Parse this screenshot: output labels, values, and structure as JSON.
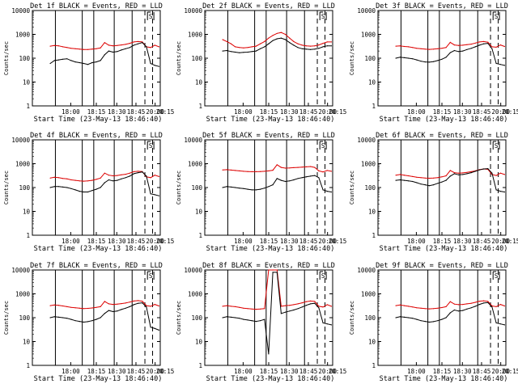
{
  "figure": {
    "xlabel": "Start Time (23-May-13 18:46:40)",
    "ylabel": "Counts/sec",
    "y_ticks": [
      "1",
      "10",
      "100",
      "1000",
      "10000"
    ],
    "x_ticks": [
      "18:00",
      "18:15",
      "18:30",
      "18:45",
      "20:00",
      "20:15"
    ],
    "marker_text": "S",
    "series_names": [
      "Events",
      "LLD"
    ],
    "colors": {
      "events": "#000000",
      "lld": "#dd0000",
      "axes": "#000000"
    }
  },
  "chart_data": [
    {
      "type": "line",
      "title": "Det 1f BLACK = Events, RED = LLD",
      "ylim": [
        1,
        10000
      ],
      "scale": "log",
      "series": [
        {
          "name": "Events",
          "color": "#000000",
          "values": [
            60,
            80,
            85,
            90,
            95,
            80,
            70,
            65,
            60,
            55,
            65,
            70,
            80,
            140,
            200,
            180,
            190,
            220,
            250,
            280,
            350,
            400,
            450,
            300,
            60,
            50,
            45
          ]
        },
        {
          "name": "LLD",
          "color": "#dd0000",
          "values": [
            320,
            340,
            330,
            300,
            280,
            260,
            250,
            240,
            230,
            230,
            240,
            250,
            270,
            450,
            350,
            330,
            340,
            360,
            380,
            420,
            480,
            500,
            480,
            300,
            280,
            350,
            300
          ]
        }
      ]
    },
    {
      "type": "line",
      "title": "Det 2f BLACK = Events, RED = LLD",
      "ylim": [
        1,
        10000
      ],
      "scale": "log",
      "series": [
        {
          "name": "Events",
          "color": "#000000",
          "values": [
            200,
            210,
            190,
            180,
            170,
            175,
            180,
            190,
            200,
            250,
            300,
            400,
            550,
            650,
            700,
            600,
            450,
            350,
            280,
            250,
            240,
            230,
            240,
            260,
            300,
            330,
            330
          ]
        },
        {
          "name": "LLD",
          "color": "#dd0000",
          "values": [
            600,
            500,
            400,
            300,
            280,
            270,
            280,
            300,
            320,
            400,
            500,
            700,
            900,
            1100,
            1200,
            1000,
            700,
            500,
            400,
            350,
            330,
            320,
            330,
            360,
            420,
            480,
            480
          ]
        }
      ]
    },
    {
      "type": "line",
      "title": "Det 3f BLACK = Events, RED = LLD",
      "ylim": [
        1,
        10000
      ],
      "scale": "log",
      "series": [
        {
          "name": "Events",
          "color": "#000000",
          "values": [
            100,
            110,
            105,
            100,
            95,
            85,
            75,
            70,
            68,
            72,
            80,
            90,
            110,
            170,
            210,
            190,
            200,
            230,
            260,
            300,
            350,
            400,
            420,
            250,
            60,
            55,
            50
          ]
        },
        {
          "name": "LLD",
          "color": "#dd0000",
          "values": [
            320,
            330,
            310,
            300,
            280,
            260,
            250,
            240,
            235,
            240,
            250,
            260,
            280,
            460,
            360,
            340,
            350,
            370,
            390,
            430,
            480,
            500,
            470,
            300,
            290,
            360,
            310
          ]
        }
      ]
    },
    {
      "type": "line",
      "title": "Det 4f BLACK = Events, RED = LLD",
      "ylim": [
        1,
        10000
      ],
      "scale": "log",
      "series": [
        {
          "name": "Events",
          "color": "#000000",
          "values": [
            100,
            110,
            110,
            105,
            100,
            90,
            80,
            70,
            65,
            65,
            75,
            85,
            100,
            160,
            210,
            190,
            200,
            230,
            260,
            300,
            380,
            420,
            450,
            300,
            55,
            50,
            45
          ]
        },
        {
          "name": "LLD",
          "color": "#dd0000",
          "values": [
            250,
            270,
            260,
            240,
            230,
            210,
            200,
            190,
            185,
            190,
            200,
            220,
            250,
            400,
            330,
            310,
            320,
            340,
            360,
            400,
            460,
            480,
            470,
            280,
            260,
            330,
            290
          ]
        }
      ]
    },
    {
      "type": "line",
      "title": "Det 5f BLACK = Events, RED = LLD",
      "ylim": [
        1,
        10000
      ],
      "scale": "log",
      "series": [
        {
          "name": "Events",
          "color": "#000000",
          "values": [
            100,
            110,
            105,
            100,
            95,
            90,
            85,
            80,
            80,
            85,
            95,
            110,
            130,
            240,
            200,
            180,
            190,
            210,
            240,
            260,
            280,
            300,
            320,
            260,
            80,
            70,
            65
          ]
        },
        {
          "name": "LLD",
          "color": "#dd0000",
          "values": [
            550,
            560,
            540,
            520,
            500,
            480,
            470,
            460,
            460,
            470,
            480,
            500,
            530,
            900,
            700,
            650,
            660,
            680,
            700,
            720,
            740,
            760,
            700,
            500,
            450,
            520,
            480
          ]
        }
      ]
    },
    {
      "type": "line",
      "title": "Det 6f BLACK = Events, RED = LLD",
      "ylim": [
        1,
        10000
      ],
      "scale": "log",
      "series": [
        {
          "name": "Events",
          "color": "#000000",
          "values": [
            200,
            210,
            200,
            190,
            180,
            160,
            140,
            130,
            120,
            130,
            150,
            170,
            200,
            300,
            380,
            340,
            350,
            380,
            420,
            480,
            550,
            600,
            620,
            400,
            80,
            70,
            65
          ]
        },
        {
          "name": "LLD",
          "color": "#dd0000",
          "values": [
            330,
            350,
            330,
            310,
            290,
            270,
            260,
            250,
            245,
            250,
            260,
            280,
            310,
            520,
            420,
            400,
            410,
            430,
            460,
            500,
            560,
            600,
            580,
            350,
            320,
            400,
            350
          ]
        }
      ]
    },
    {
      "type": "line",
      "title": "Det 7f BLACK = Events, RED = LLD",
      "ylim": [
        1,
        10000
      ],
      "scale": "log",
      "series": [
        {
          "name": "Events",
          "color": "#000000",
          "values": [
            100,
            110,
            105,
            100,
            95,
            85,
            75,
            70,
            65,
            68,
            75,
            85,
            100,
            150,
            200,
            180,
            190,
            220,
            250,
            290,
            350,
            400,
            420,
            280,
            40,
            35,
            30
          ]
        },
        {
          "name": "LLD",
          "color": "#dd0000",
          "values": [
            320,
            340,
            330,
            310,
            290,
            270,
            260,
            250,
            240,
            245,
            255,
            270,
            290,
            480,
            380,
            360,
            370,
            390,
            410,
            450,
            500,
            520,
            490,
            320,
            300,
            360,
            310
          ]
        }
      ]
    },
    {
      "type": "line",
      "title": "Det 8f BLACK = Events, RED = LLD",
      "ylim": [
        1,
        10000
      ],
      "scale": "log",
      "series": [
        {
          "name": "Events",
          "color": "#000000",
          "values": [
            100,
            110,
            105,
            100,
            95,
            85,
            80,
            75,
            70,
            75,
            85,
            3,
            8000,
            8000,
            150,
            170,
            190,
            210,
            240,
            280,
            330,
            380,
            400,
            260,
            60,
            55,
            50
          ]
        },
        {
          "name": "LLD",
          "color": "#dd0000",
          "values": [
            300,
            320,
            300,
            290,
            270,
            250,
            240,
            230,
            225,
            230,
            240,
            10000,
            10000,
            10000,
            300,
            320,
            330,
            350,
            380,
            420,
            470,
            500,
            480,
            300,
            280,
            350,
            300
          ]
        }
      ]
    },
    {
      "type": "line",
      "title": "Det 9f BLACK = Events, RED = LLD",
      "ylim": [
        1,
        10000
      ],
      "scale": "log",
      "series": [
        {
          "name": "Events",
          "color": "#000000",
          "values": [
            100,
            110,
            105,
            100,
            95,
            85,
            75,
            70,
            65,
            68,
            75,
            85,
            100,
            160,
            210,
            190,
            200,
            230,
            260,
            300,
            360,
            410,
            430,
            280,
            60,
            55,
            50
          ]
        },
        {
          "name": "LLD",
          "color": "#dd0000",
          "values": [
            320,
            340,
            320,
            300,
            280,
            260,
            250,
            240,
            235,
            240,
            250,
            265,
            290,
            470,
            370,
            350,
            360,
            380,
            400,
            440,
            490,
            510,
            480,
            310,
            290,
            360,
            310
          ]
        }
      ]
    }
  ]
}
